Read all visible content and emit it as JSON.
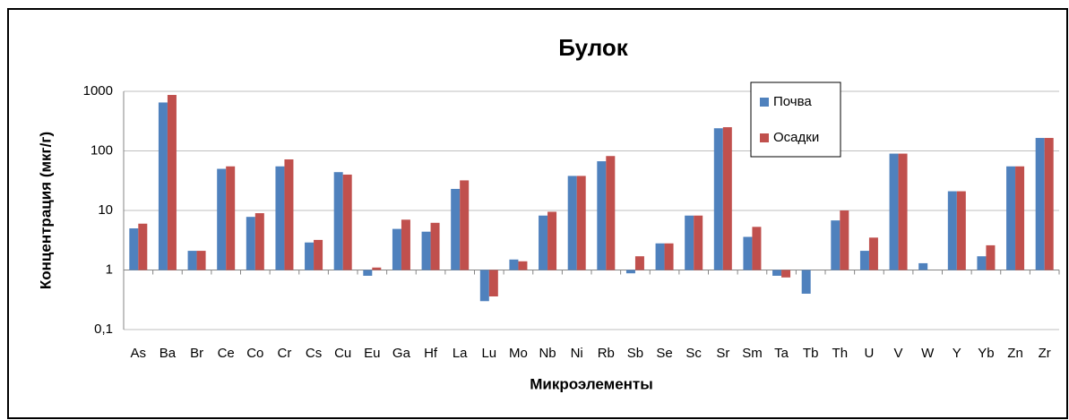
{
  "chart_data": {
    "type": "bar",
    "title": "Булок",
    "x_label": "Микроэлементы",
    "y_label": "Концентрация (мкг/г)",
    "categories": [
      "As",
      "Ba",
      "Br",
      "Ce",
      "Co",
      "Cr",
      "Cs",
      "Cu",
      "Eu",
      "Ga",
      "Hf",
      "La",
      "Lu",
      "Mo",
      "Nb",
      "Ni",
      "Rb",
      "Sb",
      "Se",
      "Sc",
      "Sr",
      "Sm",
      "Ta",
      "Tb",
      "Th",
      "U",
      "V",
      "W",
      "Y",
      "Yb",
      "Zn",
      "Zr"
    ],
    "series": [
      {
        "name": "Почва",
        "color": "#4f81bd",
        "values": [
          5,
          650,
          2.1,
          50,
          7.8,
          55,
          2.9,
          44,
          0.8,
          4.9,
          4.4,
          23,
          0.3,
          1.5,
          8.2,
          38,
          67,
          0.88,
          2.8,
          8.2,
          240,
          3.6,
          0.8,
          0.4,
          6.8,
          2.1,
          90,
          1.3,
          21,
          1.7,
          55,
          165
        ]
      },
      {
        "name": "Осадки",
        "color": "#c0504d",
        "values": [
          6,
          870,
          2.1,
          55,
          9,
          72,
          3.2,
          40,
          1.1,
          7,
          6.2,
          32,
          0.36,
          1.4,
          9.5,
          38,
          82,
          1.7,
          2.8,
          8.2,
          250,
          5.3,
          0.75,
          null,
          10,
          3.5,
          90,
          null,
          21,
          2.6,
          55,
          165
        ]
      }
    ],
    "ylim": [
      0.1,
      1000
    ],
    "yticks": [
      {
        "value": 0.1,
        "label": "0,1"
      },
      1,
      10,
      100,
      1000
    ],
    "log_scale": true,
    "grid": true,
    "legend": "top-right"
  }
}
